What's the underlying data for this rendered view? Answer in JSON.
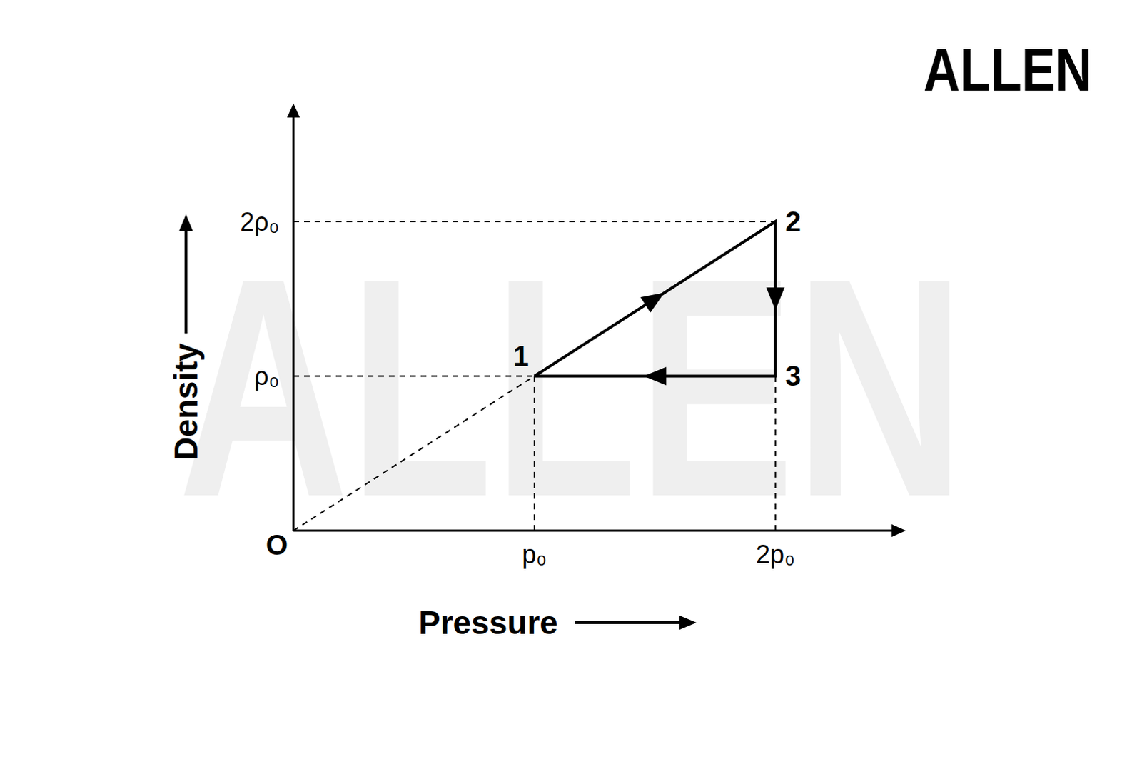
{
  "chart_data": {
    "type": "line",
    "x_label": "Pressure",
    "y_label": "Density",
    "xlim": [
      0,
      2.5
    ],
    "ylim": [
      0,
      2.7
    ],
    "xticks": [
      {
        "value": 1,
        "label": "p₀"
      },
      {
        "value": 2,
        "label": "2p₀"
      }
    ],
    "yticks": [
      {
        "value": 1,
        "label": "ρ₀"
      },
      {
        "value": 2,
        "label": "2ρ₀"
      }
    ],
    "grid": false,
    "tick_labels": true,
    "series": [
      {
        "x": [
          1,
          2,
          2,
          1
        ],
        "values": [
          1,
          2,
          1,
          1
        ],
        "point_labels": [
          "1",
          "2",
          "3",
          null
        ],
        "color": "#000000",
        "line_style": "solid",
        "marker": "arrow"
      },
      {
        "x": [
          0,
          1
        ],
        "values": [
          0,
          1
        ],
        "color": "#000000",
        "line_style": "dashed",
        "marker": "none"
      }
    ],
    "annotations": [
      {
        "text": "O",
        "x": 0,
        "y": 0
      }
    ],
    "watermark": "ALLEN"
  }
}
